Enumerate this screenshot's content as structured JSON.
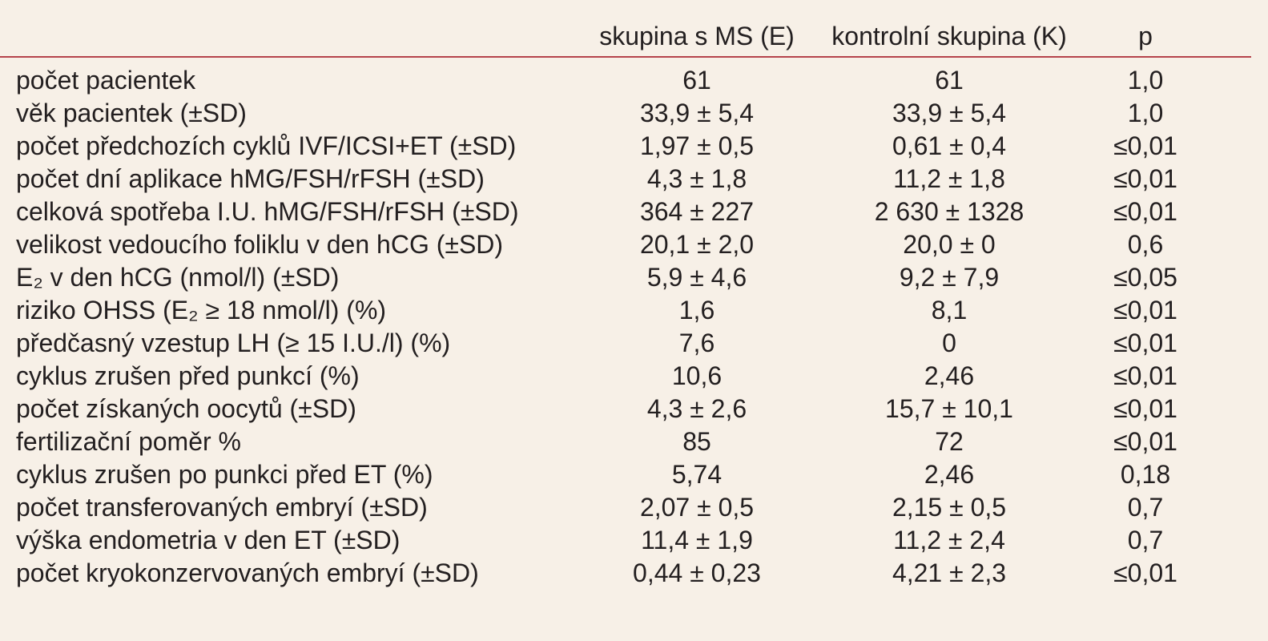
{
  "table": {
    "columns": [
      "skupina s MS (E)",
      "kontrolní skupina (K)",
      "p"
    ],
    "rows": [
      [
        "počet pacientek",
        "61",
        "61",
        "1,0"
      ],
      [
        "věk pacientek (±SD)",
        "33,9 ± 5,4",
        "33,9 ± 5,4",
        "1,0"
      ],
      [
        "počet předchozích cyklů IVF/ICSI+ET (±SD)",
        "1,97 ± 0,5",
        "0,61 ± 0,4",
        "≤0,01"
      ],
      [
        "počet dní aplikace hMG/FSH/rFSH (±SD)",
        "4,3 ± 1,8",
        "11,2 ± 1,8",
        "≤0,01"
      ],
      [
        "celková spotřeba I.U. hMG/FSH/rFSH (±SD)",
        "364 ± 227",
        "2 630 ± 1328",
        "≤0,01"
      ],
      [
        "velikost vedoucího foliklu v den hCG (±SD)",
        "20,1 ± 2,0",
        "20,0 ± 0",
        "0,6"
      ],
      [
        "E₂ v den hCG (nmol/l) (±SD)",
        "5,9 ± 4,6",
        "9,2 ± 7,9",
        "≤0,05"
      ],
      [
        "riziko OHSS (E₂ ≥ 18 nmol/l) (%)",
        "1,6",
        "8,1",
        "≤0,01"
      ],
      [
        "předčasný vzestup LH (≥ 15 I.U./l) (%)",
        "7,6",
        "0",
        "≤0,01"
      ],
      [
        "cyklus zrušen před punkcí (%)",
        "10,6",
        "2,46",
        "≤0,01"
      ],
      [
        "počet získaných oocytů (±SD)",
        "4,3 ± 2,6",
        "15,7 ± 10,1",
        "≤0,01"
      ],
      [
        "fertilizační poměr %",
        "85",
        "72",
        "≤0,01"
      ],
      [
        "cyklus zrušen po punkci před ET (%)",
        "5,74",
        "2,46",
        "0,18"
      ],
      [
        "počet transferovaných embryí (±SD)",
        "2,07 ± 0,5",
        "2,15 ± 0,5",
        "0,7"
      ],
      [
        "výška endometria v den ET (±SD)",
        "11,4 ± 1,9",
        "11,2 ± 2,4",
        "0,7"
      ],
      [
        "počet kryokonzervovaných embryí (±SD)",
        "0,44 ± 0,23",
        "4,21 ± 2,3",
        "≤0,01"
      ]
    ]
  }
}
